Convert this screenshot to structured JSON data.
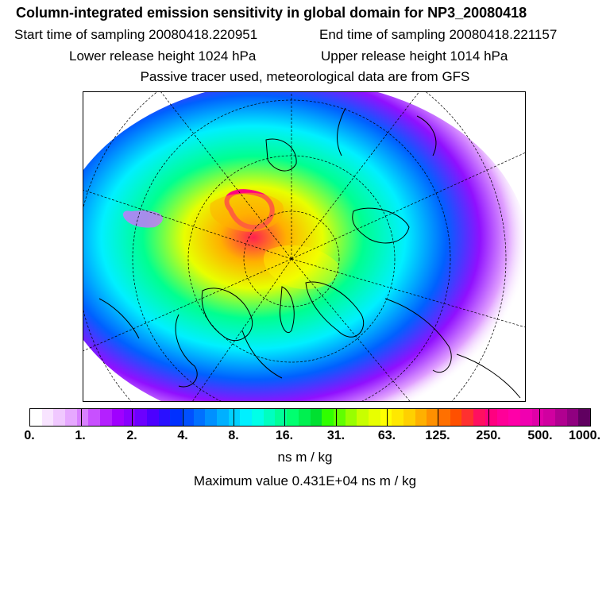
{
  "title": "Column-integrated emission sensitivity in global domain for NP3_20080418",
  "start_time": "Start time of sampling 20080418.220951",
  "end_time": "End time of sampling 20080418.221157",
  "lower_height": "Lower release height 1024 hPa",
  "upper_height": "Upper release height 1014 hPa",
  "tracer_note": "Passive tracer used, meteorological data are from GFS",
  "colorbar": {
    "ticks": [
      "0.",
      "1.",
      "2.",
      "4.",
      "8.",
      "16.",
      "31.",
      "63.",
      "125.",
      "250.",
      "500.",
      "1000."
    ],
    "colors": [
      "#ffffff",
      "#f8e4ff",
      "#f0c8ff",
      "#e6a8ff",
      "#d880ff",
      "#c850ff",
      "#b420ff",
      "#a000ff",
      "#8800ff",
      "#6c00ff",
      "#4c00ff",
      "#2a10ff",
      "#0030ff",
      "#0050ff",
      "#0070ff",
      "#0090ff",
      "#00b0ff",
      "#00d0ff",
      "#00f0ff",
      "#00ffe8",
      "#00ffc0",
      "#00ff98",
      "#00ff70",
      "#00f050",
      "#00e030",
      "#30ff00",
      "#60ff00",
      "#98ff00",
      "#c8ff00",
      "#e8ff00",
      "#ffff00",
      "#ffe800",
      "#ffd000",
      "#ffb000",
      "#ff9000",
      "#ff7000",
      "#ff5000",
      "#ff3030",
      "#ff1060",
      "#ff0080",
      "#ff0098",
      "#ff00a8",
      "#f000b0",
      "#e000a8",
      "#d000a0",
      "#b00090",
      "#900080",
      "#600060"
    ],
    "unit": "ns m / kg"
  },
  "max_value": "Maximum value  0.431E+04 ns m / kg"
}
